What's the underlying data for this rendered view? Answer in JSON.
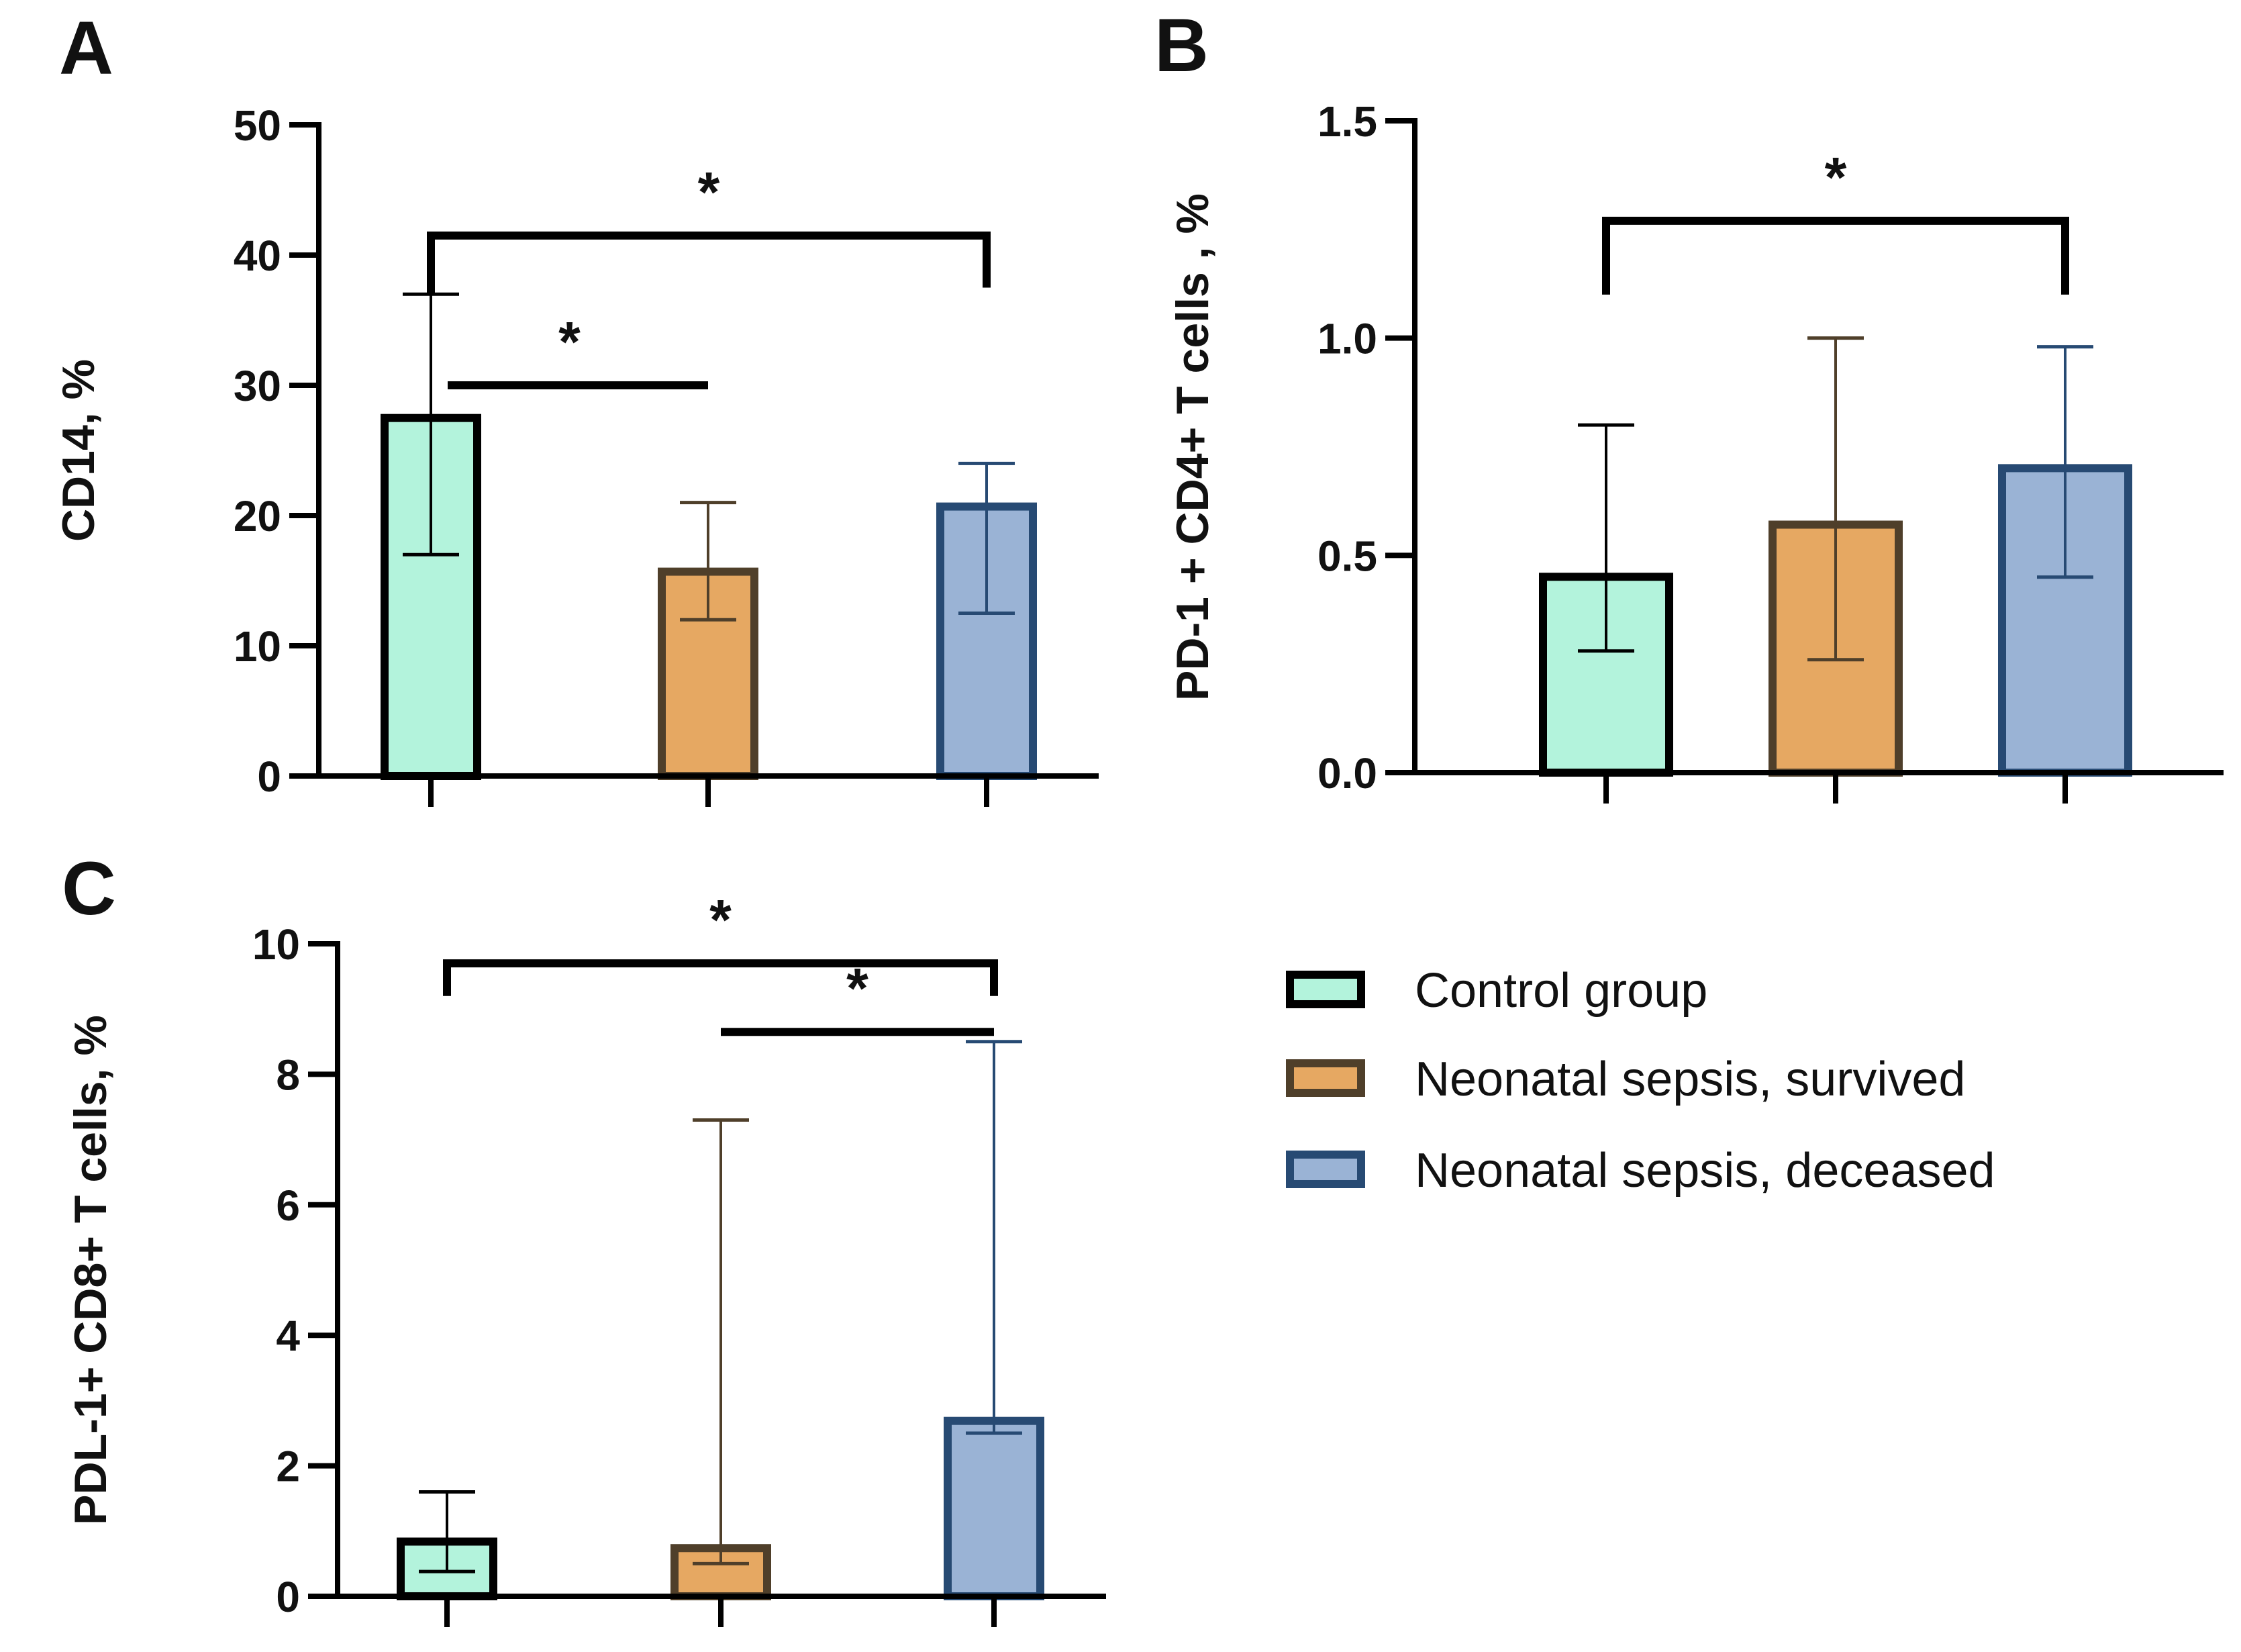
{
  "legend": {
    "items": [
      {
        "label": "Control group",
        "fill": "#b3f3dc",
        "stroke": "#000000"
      },
      {
        "label": "Neonatal sepsis, survived",
        "fill": "#e6a862",
        "stroke": "#4f3f2a"
      },
      {
        "label": "Neonatal sepsis, deceased",
        "fill": "#9ab3d5",
        "stroke": "#274a73"
      }
    ]
  },
  "chart_data": [
    {
      "panel": "A",
      "type": "bar",
      "ylabel": "CD14, %",
      "ylim": [
        0,
        50
      ],
      "yticks": [
        0,
        10,
        20,
        30,
        40,
        50
      ],
      "ytick_labels": [
        "0",
        "10",
        "20",
        "30",
        "40",
        "50"
      ],
      "categories": [
        "Control group",
        "Neonatal sepsis, survived",
        "Neonatal sepsis, deceased"
      ],
      "values": [
        27.8,
        16,
        21
      ],
      "error_low": [
        17,
        12,
        12.5
      ],
      "error_high": [
        37,
        21,
        24
      ],
      "significance": [
        {
          "from": 0,
          "to": 2,
          "y": 41.5,
          "leg_left": 37,
          "leg_right": 37.5,
          "label": "*"
        },
        {
          "from": 0,
          "to": 1,
          "y": 30,
          "label": "*"
        }
      ]
    },
    {
      "panel": "B",
      "type": "bar",
      "ylabel": "PD-1 + CD4+ T cells , %",
      "ylim": [
        0,
        1.5
      ],
      "yticks": [
        0,
        0.5,
        1.0,
        1.5
      ],
      "ytick_labels": [
        "0.0",
        "0.5",
        "1.0",
        "1.5"
      ],
      "categories": [
        "Control group",
        "Neonatal sepsis, survived",
        "Neonatal sepsis, deceased"
      ],
      "values": [
        0.46,
        0.58,
        0.71
      ],
      "error_low": [
        0.28,
        0.26,
        0.45
      ],
      "error_high": [
        0.8,
        1.0,
        0.98
      ],
      "significance": [
        {
          "from": 0,
          "to": 2,
          "y": 1.27,
          "leg_left": 1.1,
          "leg_right": 1.1,
          "label": "*"
        }
      ]
    },
    {
      "panel": "C",
      "type": "bar",
      "ylabel": "PDL-1+ CD8+ T cells, %",
      "ylim": [
        0,
        10
      ],
      "yticks": [
        0,
        2,
        4,
        6,
        8,
        10
      ],
      "ytick_labels": [
        "0",
        "2",
        "4",
        "6",
        "8",
        "10"
      ],
      "categories": [
        "Control group",
        "Neonatal sepsis, survived",
        "Neonatal sepsis, deceased"
      ],
      "values": [
        0.9,
        0.8,
        2.75
      ],
      "error_low": [
        0.38,
        0.5,
        2.5
      ],
      "error_high": [
        1.6,
        7.3,
        8.5
      ],
      "significance": [
        {
          "from": 0,
          "to": 2,
          "y": 9.7,
          "leg_left": 9.2,
          "leg_right": 9.2,
          "label": "*"
        },
        {
          "from": 1,
          "to": 2,
          "y": 8.65,
          "label": "*"
        }
      ]
    }
  ]
}
